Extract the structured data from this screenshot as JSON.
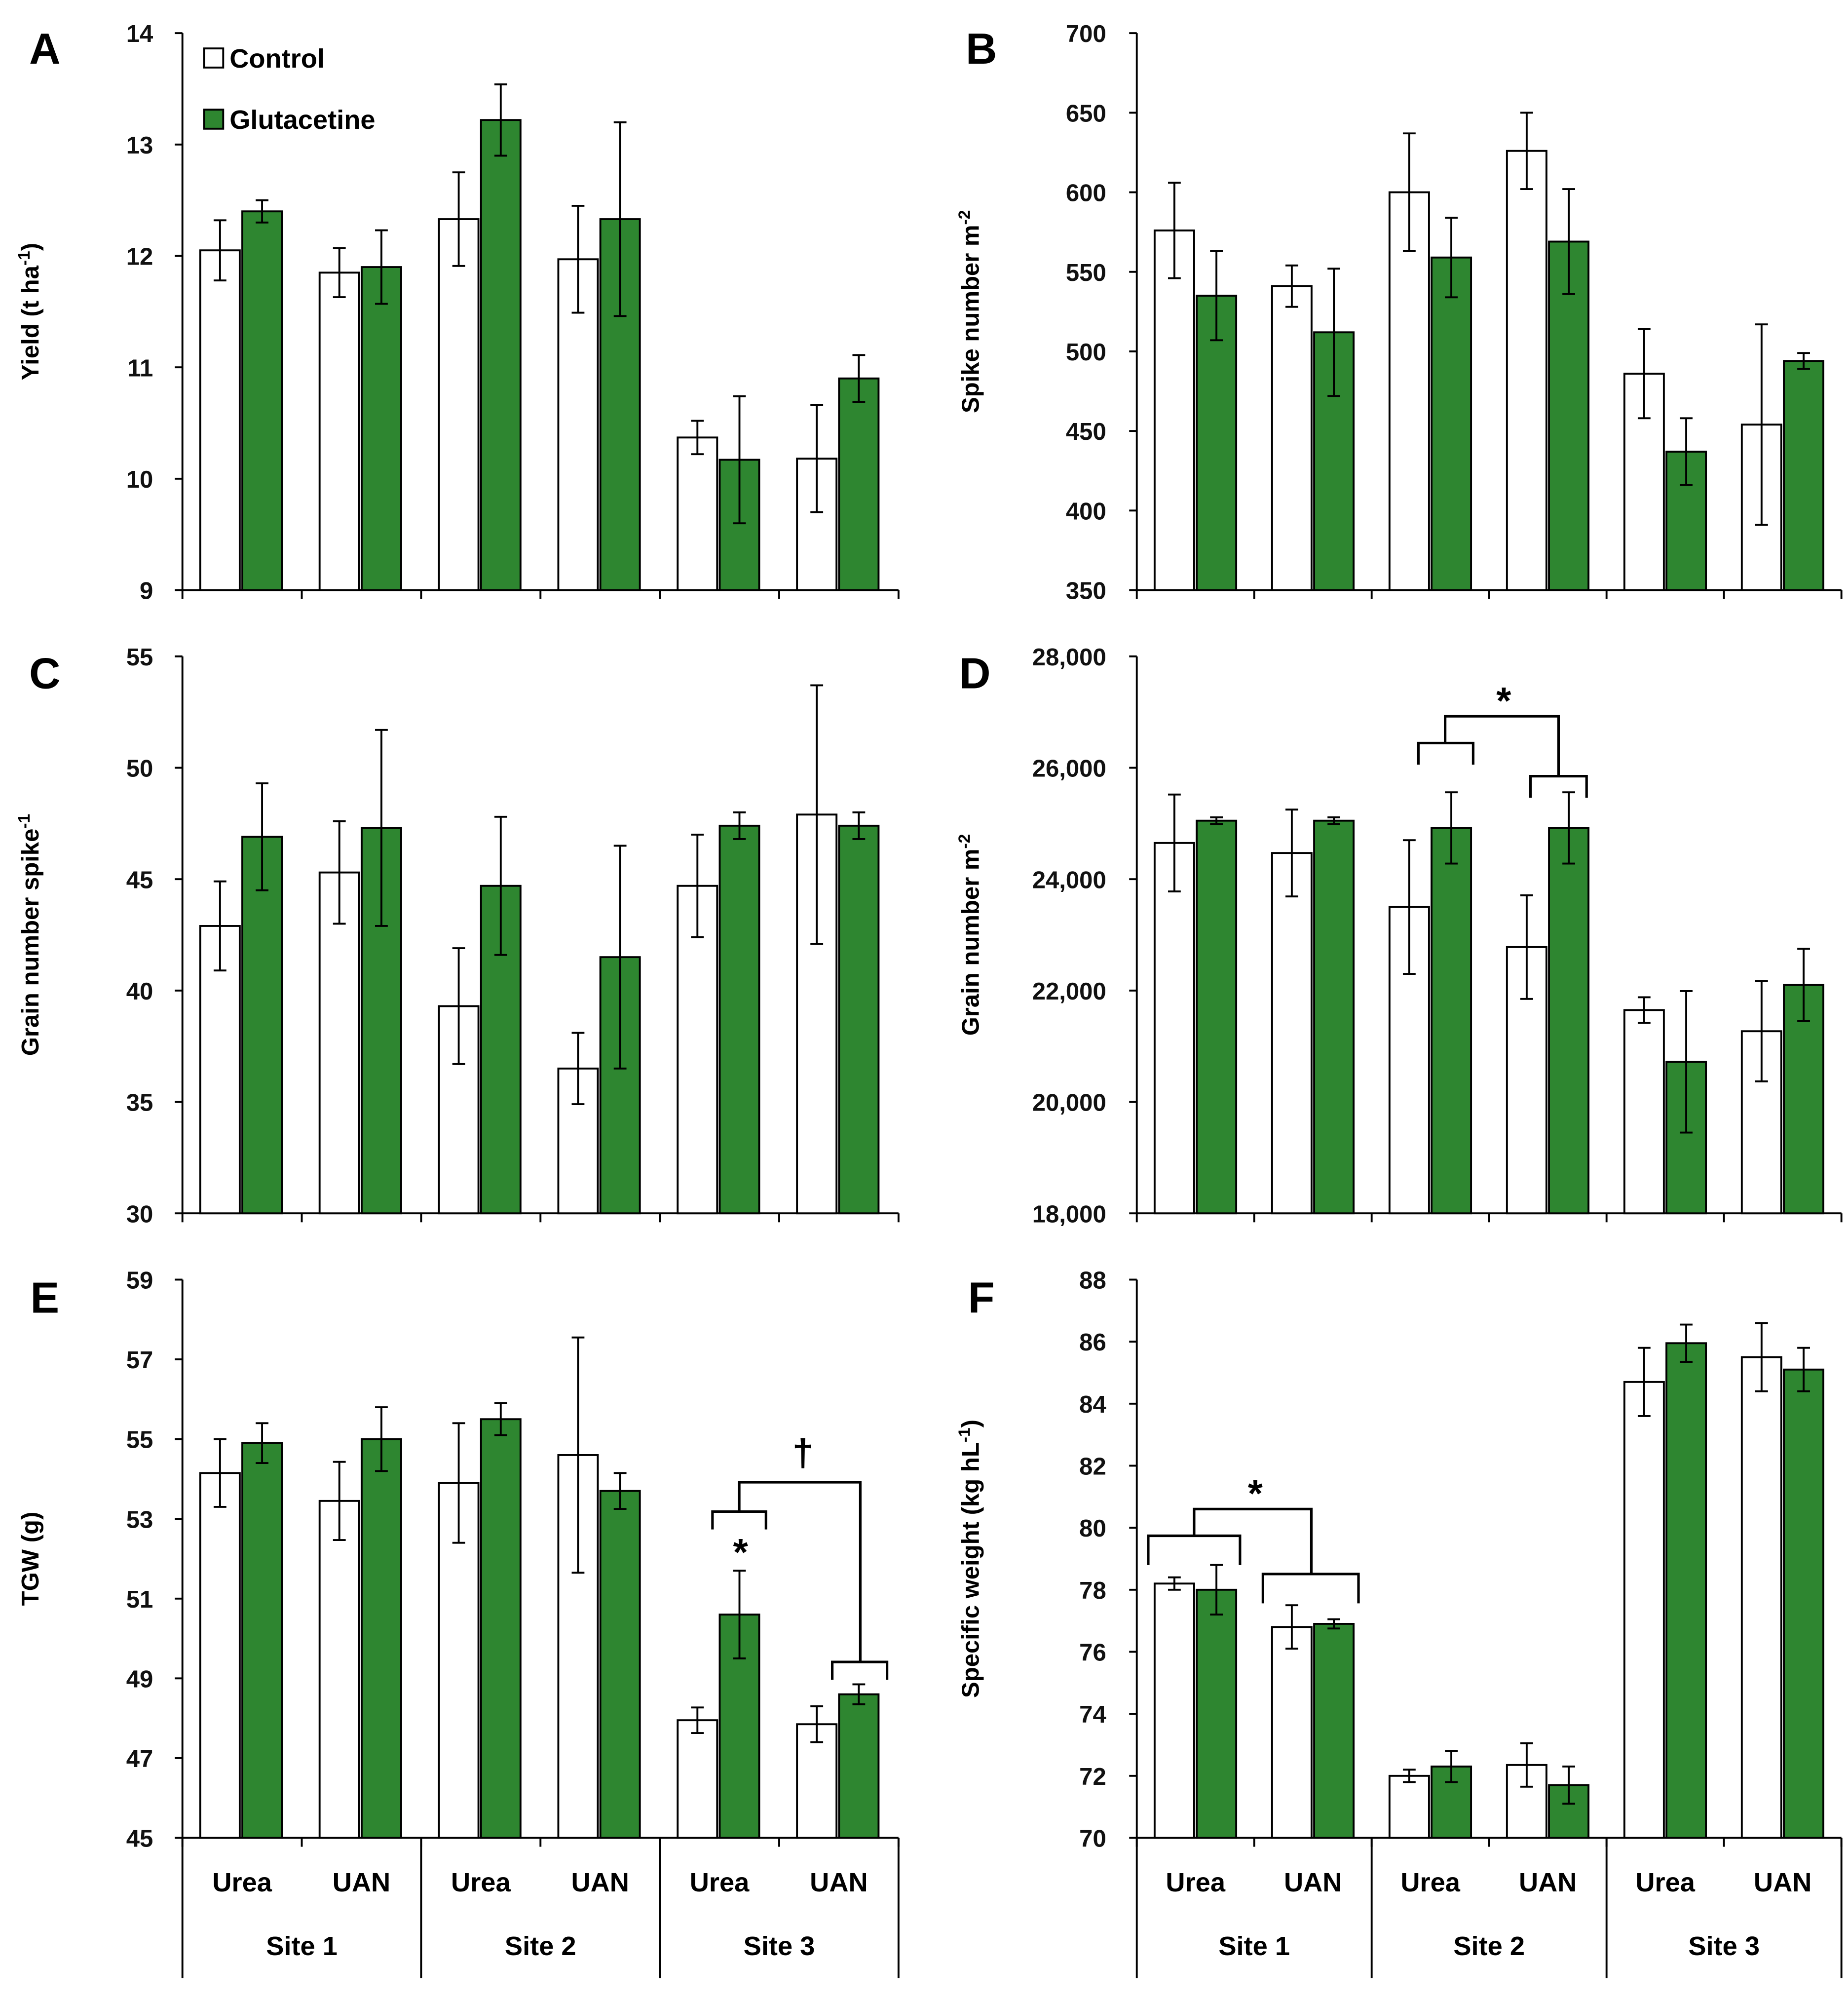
{
  "colors": {
    "control": "#ffffff",
    "glutacetine": "#2e8630",
    "axis": "#000000"
  },
  "legend": [
    {
      "label": "Control",
      "color": "#ffffff"
    },
    {
      "label": "Glutacetine",
      "color": "#2e8630"
    }
  ],
  "x_axis": {
    "fertilizers": [
      "Urea",
      "UAN",
      "Urea",
      "UAN",
      "Urea",
      "UAN"
    ],
    "sites": [
      "Site 1",
      "Site 2",
      "Site 3"
    ]
  },
  "chart_data": [
    {
      "panel": "A",
      "type": "bar",
      "ylabel": "Yield (t ha",
      "ylabel_sup": "-1",
      "ylabel_end": ")",
      "ylim": [
        9,
        14
      ],
      "yticks": [
        "9",
        "10",
        "11",
        "12",
        "13",
        "14"
      ],
      "series": [
        {
          "name": "Control",
          "values": [
            12.05,
            11.85,
            12.33,
            11.97,
            10.37,
            10.18
          ],
          "errors": [
            0.27,
            0.22,
            0.42,
            0.48,
            0.15,
            0.48
          ]
        },
        {
          "name": "Glutacetine",
          "values": [
            12.4,
            11.9,
            13.22,
            12.33,
            10.17,
            10.9
          ],
          "errors": [
            0.1,
            0.33,
            0.32,
            0.87,
            0.57,
            0.21
          ]
        }
      ],
      "annotations": []
    },
    {
      "panel": "B",
      "type": "bar",
      "ylabel": "Spike number m",
      "ylabel_sup": "-2",
      "ylabel_end": "",
      "ylim": [
        350,
        700
      ],
      "yticks": [
        "350",
        "400",
        "450",
        "500",
        "550",
        "600",
        "650",
        "700"
      ],
      "series": [
        {
          "name": "Control",
          "values": [
            576,
            541,
            600,
            626,
            486,
            454
          ],
          "errors": [
            30,
            13,
            37,
            24,
            28,
            63
          ]
        },
        {
          "name": "Glutacetine",
          "values": [
            535,
            512,
            559,
            569,
            437,
            494
          ],
          "errors": [
            28,
            40,
            25,
            33,
            21,
            5
          ]
        }
      ],
      "annotations": []
    },
    {
      "panel": "C",
      "type": "bar",
      "ylabel": "Grain number spike",
      "ylabel_sup": "-1",
      "ylabel_end": "",
      "ylim": [
        30,
        55
      ],
      "yticks": [
        "30",
        "35",
        "40",
        "45",
        "50",
        "55"
      ],
      "series": [
        {
          "name": "Control",
          "values": [
            42.9,
            45.3,
            39.3,
            36.5,
            44.7,
            47.9
          ],
          "errors": [
            2.0,
            2.3,
            2.6,
            1.6,
            2.3,
            5.8
          ]
        },
        {
          "name": "Glutacetine",
          "values": [
            46.9,
            47.3,
            44.7,
            41.5,
            47.4,
            47.4
          ],
          "errors": [
            2.4,
            4.4,
            3.1,
            5.0,
            0.6,
            0.6
          ]
        }
      ],
      "annotations": []
    },
    {
      "panel": "D",
      "type": "bar",
      "ylabel": "Grain number m",
      "ylabel_sup": "-2",
      "ylabel_end": "",
      "ylim": [
        18000,
        28000
      ],
      "yticks": [
        "18,000",
        "20,000",
        "22,000",
        "24,000",
        "26,000",
        "28,000"
      ],
      "series": [
        {
          "name": "Control",
          "values": [
            24650,
            24470,
            23500,
            22780,
            21650,
            21270
          ],
          "errors": [
            870,
            780,
            1200,
            930,
            230,
            900
          ]
        },
        {
          "name": "Glutacetine",
          "values": [
            25050,
            25050,
            24920,
            24920,
            20720,
            22100
          ],
          "errors": [
            60,
            60,
            640,
            640,
            1270,
            650
          ]
        }
      ],
      "annotations": [
        {
          "text": "*",
          "compares": [
            "Site 2 Urea",
            "Site 2 UAN"
          ]
        }
      ]
    },
    {
      "panel": "E",
      "type": "bar",
      "ylabel": "TGW (g)",
      "ylabel_sup": "",
      "ylabel_end": "",
      "ylim": [
        45,
        59
      ],
      "yticks": [
        "45",
        "47",
        "49",
        "51",
        "53",
        "55",
        "57",
        "59"
      ],
      "series": [
        {
          "name": "Control",
          "values": [
            54.15,
            53.45,
            53.9,
            54.6,
            47.95,
            47.85
          ],
          "errors": [
            0.85,
            0.98,
            1.5,
            2.95,
            0.32,
            0.45
          ]
        },
        {
          "name": "Glutacetine",
          "values": [
            54.9,
            55.0,
            55.5,
            53.7,
            50.6,
            48.6
          ],
          "errors": [
            0.5,
            0.8,
            0.4,
            0.45,
            1.1,
            0.25
          ]
        }
      ],
      "annotations": [
        {
          "text": "*",
          "compares": [
            "Site 3 Urea Control",
            "Site 3 Urea Glutacetine"
          ]
        },
        {
          "text": "†",
          "compares": [
            "Site 3 Urea",
            "Site 3 UAN"
          ]
        }
      ]
    },
    {
      "panel": "F",
      "type": "bar",
      "ylabel": "Specific weight (kg hL",
      "ylabel_sup": "-1",
      "ylabel_end": ")",
      "ylim": [
        70,
        88
      ],
      "yticks": [
        "70",
        "72",
        "74",
        "76",
        "78",
        "80",
        "82",
        "84",
        "86",
        "88"
      ],
      "series": [
        {
          "name": "Control",
          "values": [
            78.2,
            76.8,
            72.0,
            72.35,
            84.7,
            85.5
          ],
          "errors": [
            0.2,
            0.7,
            0.2,
            0.7,
            1.1,
            1.1
          ]
        },
        {
          "name": "Glutacetine",
          "values": [
            78.0,
            76.9,
            72.3,
            71.7,
            85.95,
            85.1
          ],
          "errors": [
            0.8,
            0.15,
            0.5,
            0.6,
            0.6,
            0.7
          ]
        }
      ],
      "annotations": [
        {
          "text": "*",
          "compares": [
            "Site 1 Urea",
            "Site 1 UAN"
          ]
        }
      ]
    }
  ]
}
